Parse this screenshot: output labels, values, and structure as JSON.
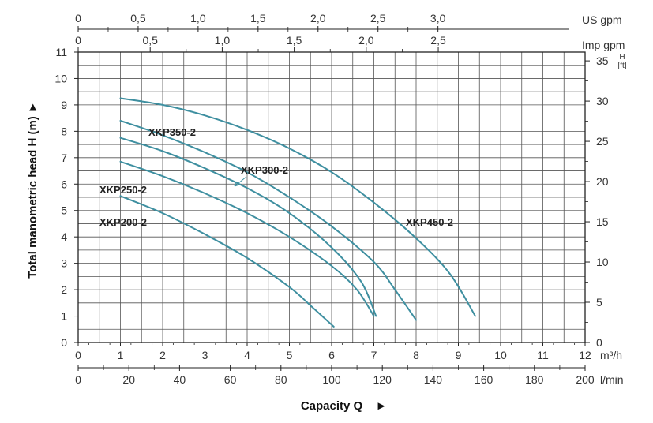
{
  "chart_data": {
    "type": "line",
    "title": "",
    "xlabel": "Capacity Q",
    "ylabel": "Total manometric head H (m)",
    "xlim": [
      0,
      12
    ],
    "ylim": [
      0,
      11
    ],
    "grid": true,
    "colors": {
      "curve": "#3e8fa0",
      "grid": "#555555",
      "axis": "#222222"
    },
    "arrow_glyph": "►",
    "x_axis_m3h": {
      "unit": "m³/h",
      "ticks": [
        "0",
        "1",
        "2",
        "3",
        "4",
        "5",
        "6",
        "7",
        "8",
        "9",
        "10",
        "11",
        "12"
      ]
    },
    "x_axis_lmin": {
      "unit": "l/min",
      "ticks": [
        "0",
        "20",
        "40",
        "60",
        "80",
        "100",
        "120",
        "140",
        "160",
        "180",
        "200"
      ]
    },
    "x_axis_usgpm": {
      "unit": "US gpm",
      "ticks": [
        "0",
        "0,5",
        "1,0",
        "1,5",
        "2,0",
        "2,5",
        "3,0"
      ]
    },
    "x_axis_impgpm": {
      "unit": "Imp gpm",
      "ticks": [
        "0",
        "0,5",
        "1,0",
        "1,5",
        "2,0",
        "2,5"
      ]
    },
    "y_axis_m": {
      "ticks": [
        "0",
        "1",
        "2",
        "3",
        "4",
        "5",
        "6",
        "7",
        "8",
        "9",
        "10",
        "11"
      ]
    },
    "y_axis_ft": {
      "unit": "H",
      "unit2": "[ft]",
      "ticks": [
        "0",
        "5",
        "10",
        "15",
        "20",
        "25",
        "30",
        "35"
      ]
    },
    "series": [
      {
        "name": "XKP200-2",
        "x": [
          1,
          2,
          3,
          4,
          5,
          5.5,
          6.05
        ],
        "y": [
          5.55,
          4.9,
          4.1,
          3.2,
          2.1,
          1.4,
          0.6
        ]
      },
      {
        "name": "XKP250-2",
        "x": [
          1,
          2,
          3,
          4,
          5,
          6,
          6.6,
          7.0
        ],
        "y": [
          6.85,
          6.3,
          5.65,
          4.9,
          4.0,
          2.9,
          2.0,
          1.0
        ]
      },
      {
        "name": "XKP300-2",
        "x": [
          1,
          2,
          3,
          4,
          5,
          6,
          6.7,
          7.05
        ],
        "y": [
          7.75,
          7.25,
          6.6,
          5.85,
          4.9,
          3.6,
          2.3,
          1.0
        ]
      },
      {
        "name": "XKP350-2",
        "x": [
          1,
          2,
          3,
          4,
          5,
          6,
          7,
          7.5,
          8.0
        ],
        "y": [
          8.4,
          7.85,
          7.2,
          6.45,
          5.5,
          4.4,
          3.05,
          2.0,
          0.85
        ]
      },
      {
        "name": "XKP450-2",
        "x": [
          1,
          2,
          3,
          4,
          5,
          6,
          7,
          8,
          8.8,
          9.4
        ],
        "y": [
          9.25,
          9.0,
          8.6,
          8.05,
          7.35,
          6.45,
          5.3,
          3.95,
          2.6,
          1.0
        ]
      }
    ]
  }
}
